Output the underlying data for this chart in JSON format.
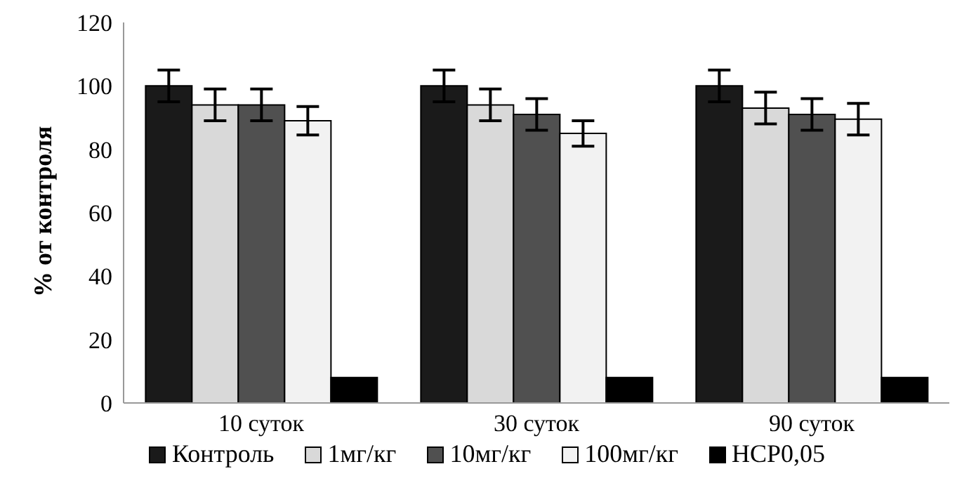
{
  "chart_data": {
    "type": "bar",
    "ylabel": "% от контроля",
    "categories": [
      "10 суток",
      "30 суток",
      "90 суток"
    ],
    "ylim": [
      0,
      120
    ],
    "yticks": [
      0,
      20,
      40,
      60,
      80,
      100,
      120
    ],
    "grid": false,
    "legend": "bottom",
    "series": [
      {
        "name": "Контроль",
        "color": "#1a1a1a",
        "values": [
          100,
          100,
          100
        ],
        "errors": [
          5,
          5,
          5
        ]
      },
      {
        "name": "1мг/кг",
        "color": "#d9d9d9",
        "values": [
          94,
          94,
          93
        ],
        "errors": [
          5,
          5,
          5
        ]
      },
      {
        "name": "10мг/кг",
        "color": "#505050",
        "values": [
          94,
          91,
          91
        ],
        "errors": [
          5,
          5,
          5
        ]
      },
      {
        "name": "100мг/кг",
        "color": "#f2f2f2",
        "values": [
          89,
          85,
          89.5
        ],
        "errors": [
          4.5,
          4,
          5
        ]
      },
      {
        "name": "НСР0,05",
        "color": "#000000",
        "values": [
          8,
          8,
          8
        ]
      }
    ]
  }
}
